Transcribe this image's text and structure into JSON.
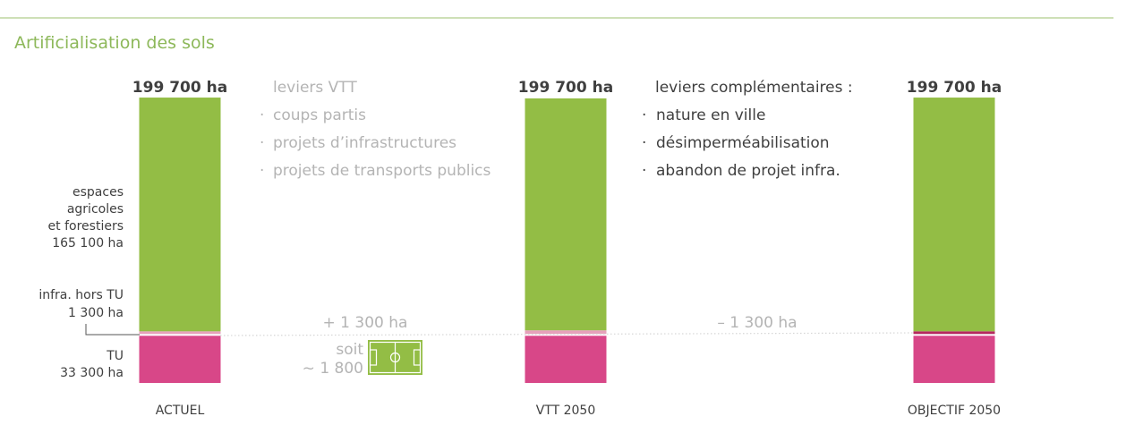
{
  "title": "Artificialisation des sols",
  "colors": {
    "title": "#8db85a",
    "agri": "#93bd45",
    "infra": "#e6a1bb",
    "tu": "#d84788",
    "rule": "#9dc26f",
    "muted": "#b4b4b4",
    "dark": "#3f3f3f",
    "objective_infra": "#b5285e"
  },
  "chart_data": {
    "type": "bar",
    "stacked": true,
    "categories": [
      "ACTUEL",
      "VTT 2050",
      "OBJECTIF 2050"
    ],
    "unit": "ha",
    "totals": [
      "199 700 ha",
      "199 700 ha",
      "199 700 ha"
    ],
    "series": [
      {
        "name": "TU",
        "color": "#d84788",
        "values": [
          33300,
          33300,
          33300
        ]
      },
      {
        "name": "infra. hors TU",
        "color": "#e6a1bb",
        "values": [
          1300,
          2600,
          1300
        ]
      },
      {
        "name": "espaces agricoles et forestiers",
        "color": "#93bd45",
        "values": [
          165100,
          163800,
          165100
        ]
      }
    ],
    "side_labels": {
      "agri": [
        "espaces",
        "agricoles",
        "et forestiers",
        "165 100 ha"
      ],
      "infra": [
        "infra. hors TU",
        "1 300 ha"
      ],
      "tu": [
        "TU",
        "33 300 ha"
      ]
    },
    "levers": [
      {
        "heading": "leviers VTT",
        "items": [
          "coups partis",
          "projets d’infrastructures",
          "projets de transports publics"
        ]
      },
      {
        "heading": "leviers complémentaires :",
        "items": [
          "nature en ville",
          "désimperméabilisation",
          "abandon de projet infra."
        ]
      }
    ],
    "deltas": [
      "+ 1 300 ha",
      "– 1 300 ha"
    ],
    "equivalence": [
      "soit",
      "~ 1 800"
    ],
    "equivalence_icon": "football-pitch-icon"
  }
}
